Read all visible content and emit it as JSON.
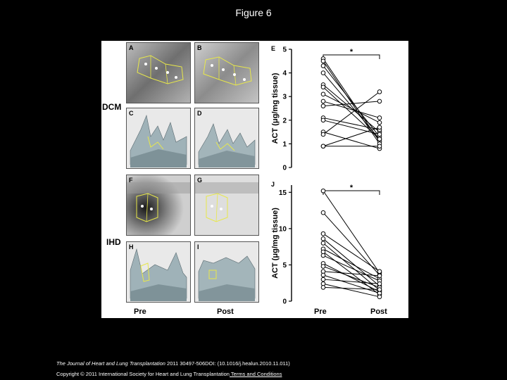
{
  "slide": {
    "title": "Figure 6",
    "citation_italic": "The Journal of Heart and Lung Transplantation",
    "citation_rest": " 2011 30497-506DOI: (10.1016/j.healun.2010.11.011)",
    "copyright": "Copyright © 2011 International Society for Heart and Lung Transplantation",
    "terms_link": " Terms and Conditions"
  },
  "figure": {
    "row_labels": {
      "top": "DCM",
      "bottom": "IHD"
    },
    "panel_letters": [
      "A",
      "B",
      "C",
      "D",
      "F",
      "G",
      "H",
      "I"
    ],
    "x_categories": [
      "Pre",
      "Post"
    ]
  },
  "chart_data": [
    {
      "type": "line",
      "panel": "E",
      "ylabel": "ACT (μg/mg tissue)",
      "ylim": [
        0,
        5
      ],
      "yticks": [
        0,
        1,
        2,
        3,
        4,
        5
      ],
      "categories": [
        "Pre",
        "Post"
      ],
      "significance": "*",
      "pairs": [
        [
          4.6,
          1.1
        ],
        [
          4.5,
          1.0
        ],
        [
          4.3,
          1.3
        ],
        [
          4.0,
          1.2
        ],
        [
          3.5,
          1.5
        ],
        [
          3.4,
          1.2
        ],
        [
          3.1,
          1.9
        ],
        [
          2.8,
          2.1
        ],
        [
          2.6,
          2.8
        ],
        [
          2.1,
          1.6
        ],
        [
          2.0,
          1.4
        ],
        [
          1.5,
          0.8
        ],
        [
          1.4,
          3.2
        ],
        [
          0.9,
          1.7
        ],
        [
          0.9,
          0.9
        ]
      ]
    },
    {
      "type": "line",
      "panel": "J",
      "ylabel": "ACT (μg/mg tissue)",
      "ylim": [
        0,
        16
      ],
      "yticks": [
        0,
        5,
        10,
        15
      ],
      "categories": [
        "Pre",
        "Post"
      ],
      "significance": "*",
      "pairs": [
        [
          15.2,
          3.9
        ],
        [
          12.2,
          3.6
        ],
        [
          9.3,
          4.1
        ],
        [
          8.6,
          2.1
        ],
        [
          8.0,
          1.5
        ],
        [
          7.2,
          3.1
        ],
        [
          6.8,
          0.9
        ],
        [
          6.3,
          2.8
        ],
        [
          5.2,
          1.3
        ],
        [
          4.8,
          1.9
        ],
        [
          4.1,
          3.5
        ],
        [
          3.6,
          1.1
        ],
        [
          3.0,
          2.4
        ],
        [
          2.4,
          0.6
        ],
        [
          1.9,
          1.6
        ]
      ]
    }
  ]
}
